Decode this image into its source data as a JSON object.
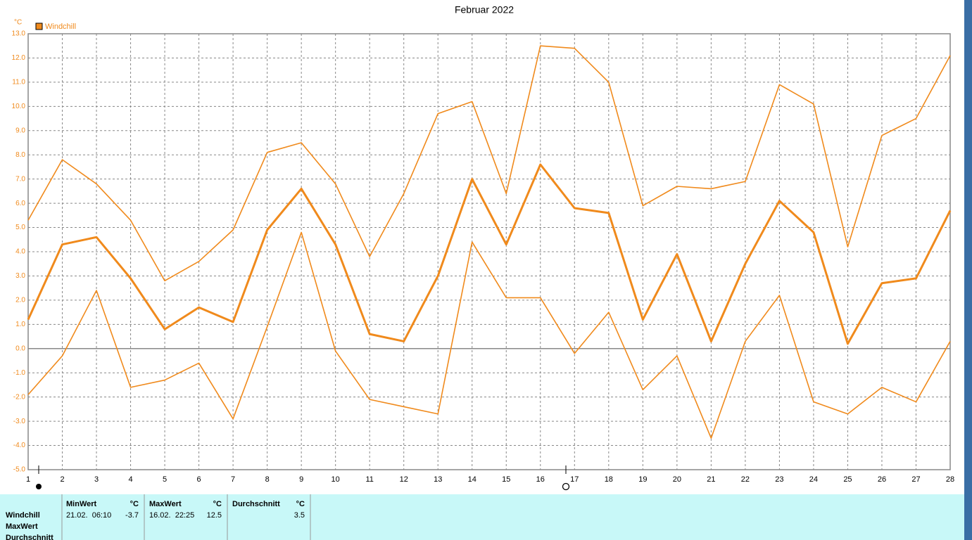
{
  "chart_data": {
    "type": "line",
    "title": "Februar 2022",
    "y_unit": "°C",
    "legend": "Windchill",
    "x": [
      1,
      2,
      3,
      4,
      5,
      6,
      7,
      8,
      9,
      10,
      11,
      12,
      13,
      14,
      15,
      16,
      17,
      18,
      19,
      20,
      21,
      22,
      23,
      24,
      25,
      26,
      27,
      28
    ],
    "xlim": [
      1,
      28
    ],
    "xticks": [
      1,
      2,
      3,
      4,
      5,
      6,
      7,
      8,
      9,
      10,
      11,
      12,
      13,
      14,
      15,
      16,
      17,
      18,
      19,
      20,
      21,
      22,
      23,
      24,
      25,
      26,
      27,
      28
    ],
    "ylim": [
      -5,
      13
    ],
    "yticks": [
      {
        "value": -5,
        "label": "-5.0"
      },
      {
        "value": -4,
        "label": "-4.0"
      },
      {
        "value": -3,
        "label": "-3.0"
      },
      {
        "value": -2,
        "label": "-2.0"
      },
      {
        "value": -1,
        "label": "-1.0"
      },
      {
        "value": 0,
        "label": "0.0"
      },
      {
        "value": 1,
        "label": "1.0"
      },
      {
        "value": 2,
        "label": "2.0"
      },
      {
        "value": 3,
        "label": "3.0"
      },
      {
        "value": 4,
        "label": "4.0"
      },
      {
        "value": 5,
        "label": "5.0"
      },
      {
        "value": 6,
        "label": "6.0"
      },
      {
        "value": 7,
        "label": "7.0"
      },
      {
        "value": 8,
        "label": "8.0"
      },
      {
        "value": 9,
        "label": "9.0"
      },
      {
        "value": 10,
        "label": "10.0"
      },
      {
        "value": 11,
        "label": "11.0"
      },
      {
        "value": 12,
        "label": "12.0"
      },
      {
        "value": 13,
        "label": "13.0"
      }
    ],
    "grid": true,
    "color": "#f08a1c",
    "series": [
      {
        "name": "MaxWert",
        "color": "#f08a1c",
        "values": [
          5.3,
          7.8,
          6.8,
          5.3,
          2.8,
          3.6,
          4.9,
          8.1,
          8.5,
          6.8,
          3.8,
          6.4,
          9.7,
          10.2,
          6.4,
          12.5,
          12.4,
          11.0,
          5.9,
          6.7,
          6.6,
          6.9,
          10.9,
          10.1,
          4.2,
          8.8,
          9.5,
          12.1
        ]
      },
      {
        "name": "Durchschnitt",
        "color": "#f08a1c",
        "values": [
          1.2,
          4.3,
          4.6,
          2.9,
          0.8,
          1.7,
          1.1,
          4.9,
          6.6,
          4.3,
          0.6,
          0.3,
          3.0,
          7.0,
          4.3,
          7.6,
          5.8,
          5.6,
          1.2,
          3.9,
          0.3,
          3.5,
          6.1,
          4.8,
          0.2,
          2.7,
          2.9,
          5.7
        ]
      },
      {
        "name": "MinWert",
        "color": "#f08a1c",
        "values": [
          -1.9,
          -0.3,
          2.4,
          -1.6,
          -1.3,
          -0.6,
          -2.9,
          0.9,
          4.8,
          -0.1,
          -2.1,
          -2.4,
          -2.7,
          4.4,
          2.1,
          2.1,
          -0.2,
          1.5,
          -1.7,
          -0.3,
          -3.7,
          0.3,
          2.2,
          -2.2,
          -2.7,
          -1.6,
          -2.2,
          0.3
        ]
      }
    ]
  },
  "stats": {
    "row_labels": [
      "Windchill",
      "MaxWert",
      "Durchschnitt"
    ],
    "columns": [
      {
        "header": "MinWert",
        "unit": "°C",
        "time": "21.02.  06:10",
        "value": -3.7
      },
      {
        "header": "MaxWert",
        "unit": "°C",
        "time": "16.02.  22:25",
        "value": 12.5
      },
      {
        "header": "Durchschnitt",
        "unit": "°C",
        "value": 3.5
      }
    ]
  }
}
